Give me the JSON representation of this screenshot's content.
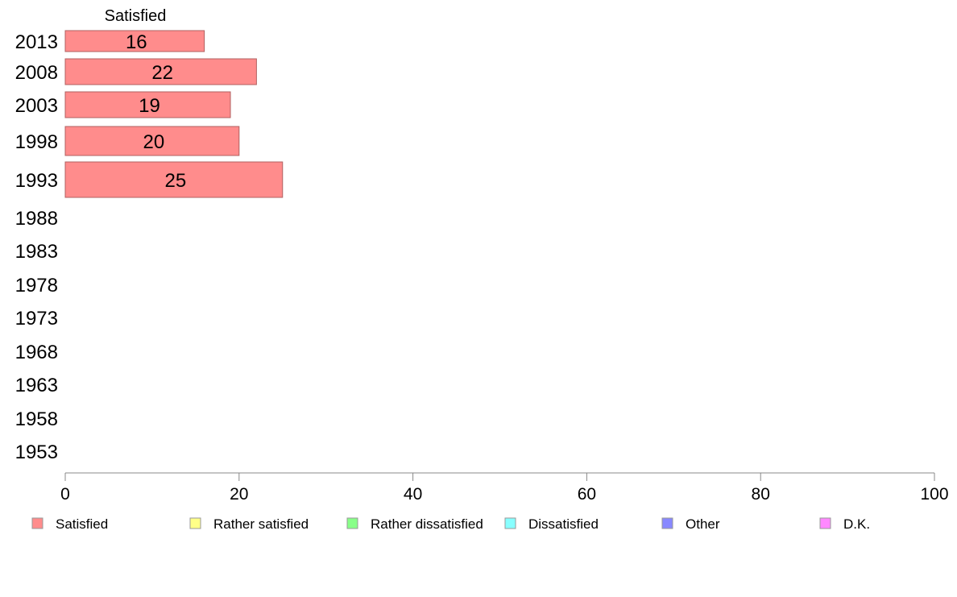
{
  "chart_data": {
    "type": "bar",
    "orientation": "horizontal",
    "categories": [
      "2013",
      "2008",
      "2003",
      "1998",
      "1993",
      "1988",
      "1983",
      "1978",
      "1973",
      "1968",
      "1963",
      "1958",
      "1953"
    ],
    "series": [
      {
        "name": "Satisfied",
        "color": "#ff8c8c",
        "values": [
          16,
          22,
          19,
          20,
          25,
          null,
          null,
          null,
          null,
          null,
          null,
          null,
          null
        ]
      }
    ],
    "series_header": "Satisfied",
    "xlim": [
      0,
      100
    ],
    "xticks": [
      0,
      20,
      40,
      60,
      80,
      100
    ],
    "grid": false,
    "legend_placement": "bottom",
    "legend": [
      {
        "label": "Satisfied",
        "color": "#ff8c8c"
      },
      {
        "label": "Rather satisfied",
        "color": "#ffff88"
      },
      {
        "label": "Rather dissatisfied",
        "color": "#88ff88"
      },
      {
        "label": "Dissatisfied",
        "color": "#88ffff"
      },
      {
        "label": "Other",
        "color": "#8888ff"
      },
      {
        "label": "D.K.",
        "color": "#ff88ff"
      }
    ]
  }
}
